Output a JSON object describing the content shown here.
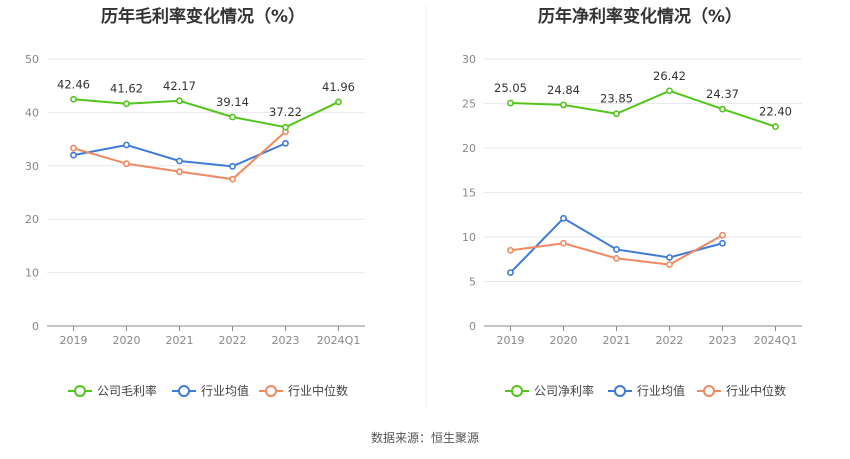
{
  "chart_data": [
    {
      "type": "line",
      "title": "历年毛利率变化情况（%）",
      "categories": [
        "2019",
        "2020",
        "2021",
        "2022",
        "2023",
        "2024Q1"
      ],
      "ylim": [
        0,
        50
      ],
      "yticks": [
        0,
        10,
        20,
        30,
        40,
        50
      ],
      "grid": true,
      "legend_position": "bottom",
      "series": [
        {
          "name": "公司毛利率",
          "values": [
            42.46,
            41.62,
            42.17,
            39.14,
            37.22,
            41.96
          ],
          "labels": [
            "42.46",
            "41.62",
            "42.17",
            "39.14",
            "37.22",
            "41.96"
          ],
          "color": "#52c41a"
        },
        {
          "name": "行业均值",
          "values": [
            32.0,
            33.9,
            30.9,
            29.9,
            34.2,
            null
          ],
          "color": "#3e7bd9"
        },
        {
          "name": "行业中位数",
          "values": [
            33.3,
            30.4,
            28.9,
            27.5,
            36.4,
            null
          ],
          "color": "#f08860"
        }
      ]
    },
    {
      "type": "line",
      "title": "历年净利率变化情况（%）",
      "categories": [
        "2019",
        "2020",
        "2021",
        "2022",
        "2023",
        "2024Q1"
      ],
      "ylim": [
        0,
        30
      ],
      "yticks": [
        0,
        5,
        10,
        15,
        20,
        25,
        30
      ],
      "grid": true,
      "legend_position": "bottom",
      "series": [
        {
          "name": "公司净利率",
          "values": [
            25.05,
            24.84,
            23.85,
            26.42,
            24.37,
            22.4
          ],
          "labels": [
            "25.05",
            "24.84",
            "23.85",
            "26.42",
            "24.37",
            "22.40"
          ],
          "color": "#52c41a"
        },
        {
          "name": "行业均值",
          "values": [
            6.0,
            12.1,
            8.6,
            7.7,
            9.3,
            null
          ],
          "color": "#3e7bd9"
        },
        {
          "name": "行业中位数",
          "values": [
            8.5,
            9.3,
            7.6,
            6.9,
            10.2,
            null
          ],
          "color": "#f08860"
        }
      ]
    }
  ],
  "footer": {
    "source": "数据来源：恒生聚源"
  },
  "colors": {
    "grid": "#e6e9ee",
    "axis": "#8a8a8a",
    "divider": "#eeeeee",
    "legend_hollow": "#ffffff"
  }
}
